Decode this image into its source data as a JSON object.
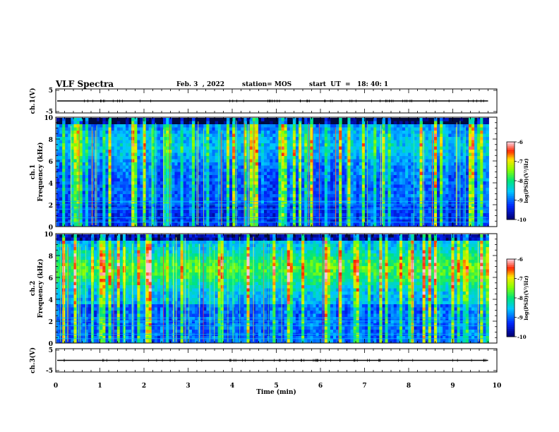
{
  "header": {
    "title": "VLF Spectra",
    "date": "Feb. 3  , 2022",
    "station": "station= MOS",
    "start": "start  UT  =   18: 40: 1"
  },
  "chart_data": [
    {
      "type": "line",
      "name": "ch1-waveform",
      "ylabel": "ch.1(V)",
      "ylim": [
        -5,
        5
      ],
      "yticks": [
        "5",
        "-5"
      ],
      "xlim": [
        0,
        10
      ],
      "y_value": 0
    },
    {
      "type": "heatmap",
      "name": "ch1-spectrogram",
      "ylabel_lines": [
        "ch.1",
        "Frequency  (kHz)"
      ],
      "ylim": [
        0,
        10
      ],
      "yticks": [
        "0",
        "2",
        "4",
        "6",
        "8",
        "10"
      ],
      "xlim": [
        0,
        10
      ],
      "data_x_extent": [
        0,
        9.8
      ],
      "colorbar": {
        "label": "log(PSD)(V²/Hz)",
        "range": [
          -10,
          -6
        ],
        "ticks": [
          "-6",
          "-7",
          "-8",
          "-9",
          "-10"
        ]
      }
    },
    {
      "type": "heatmap",
      "name": "ch2-spectrogram",
      "ylabel_lines": [
        "ch.2",
        "Frequency  (kHz)"
      ],
      "ylim": [
        0,
        10
      ],
      "yticks": [
        "0",
        "2",
        "4",
        "6",
        "8",
        "10"
      ],
      "xlim": [
        0,
        10
      ],
      "data_x_extent": [
        0,
        9.8
      ],
      "colorbar": {
        "label": "log(PSD)(V²/Hz)",
        "range": [
          -10,
          -6
        ],
        "ticks": [
          "-6",
          "-7",
          "-8",
          "-9",
          "-10"
        ]
      }
    },
    {
      "type": "line",
      "name": "ch3-waveform",
      "ylabel": "ch.3(V)",
      "ylim": [
        -5,
        5
      ],
      "yticks": [
        "5",
        "-5"
      ],
      "xlim": [
        0,
        10
      ],
      "y_value": 0,
      "xlabel": "Time  (min)",
      "xticks": [
        "0",
        "1",
        "2",
        "3",
        "4",
        "5",
        "6",
        "7",
        "8",
        "9",
        "10"
      ]
    }
  ]
}
